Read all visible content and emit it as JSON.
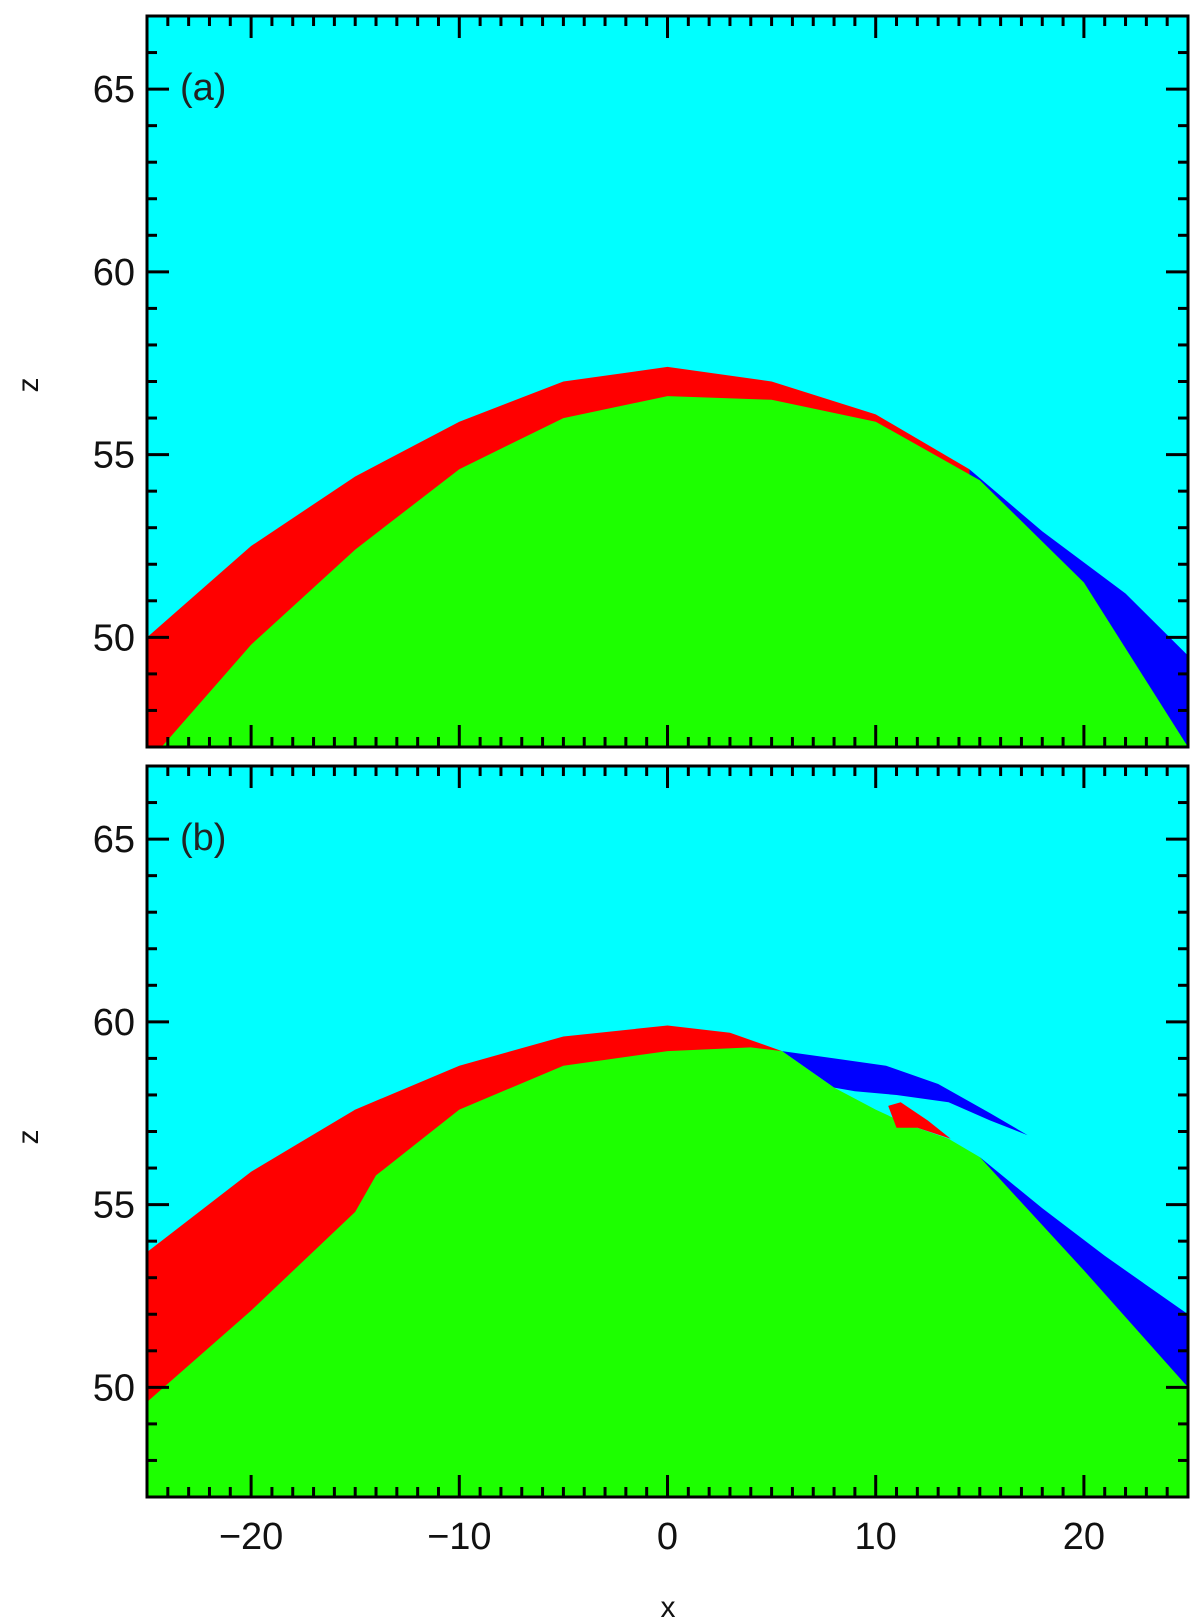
{
  "chart_data": [
    {
      "type": "heatmap",
      "panel_label": "(a)",
      "xlabel": "",
      "ylabel": "z",
      "xlim": [
        -25,
        25
      ],
      "ylim": [
        47,
        67
      ],
      "xticks": [],
      "yticks": [
        50,
        55,
        60,
        65
      ],
      "grid": false,
      "legend": "none",
      "colors": {
        "background": "#00ffff",
        "green": "#1dff00",
        "red": "#ff0000",
        "blue": "#0000ff"
      },
      "regions": {
        "green_top": [
          [
            -24.3,
            47
          ],
          [
            -20,
            49.8
          ],
          [
            -15,
            52.4
          ],
          [
            -10,
            54.6
          ],
          [
            -5,
            56
          ],
          [
            0,
            56.6
          ],
          [
            5,
            56.5
          ],
          [
            10,
            55.9
          ],
          [
            15,
            54.3
          ],
          [
            20,
            51.5
          ],
          [
            25,
            47
          ]
        ],
        "red_top": [
          [
            -25,
            50
          ],
          [
            -20,
            52.5
          ],
          [
            -15,
            54.4
          ],
          [
            -10,
            55.9
          ],
          [
            -5,
            57
          ],
          [
            0,
            57.4
          ],
          [
            5,
            57
          ],
          [
            10,
            56.1
          ],
          [
            14.5,
            54.6
          ]
        ],
        "blue_top": [
          [
            14.5,
            54.6
          ],
          [
            18,
            52.9
          ],
          [
            22,
            51.2
          ],
          [
            25,
            49.5
          ]
        ]
      }
    },
    {
      "type": "heatmap",
      "panel_label": "(b)",
      "xlabel": "x",
      "ylabel": "z",
      "xlim": [
        -25,
        25
      ],
      "ylim": [
        47,
        67
      ],
      "xticks": [
        -20,
        -10,
        0,
        10,
        20
      ],
      "yticks": [
        50,
        55,
        60,
        65
      ],
      "grid": false,
      "legend": "none",
      "colors": {
        "background": "#00ffff",
        "green": "#1dff00",
        "red": "#ff0000",
        "blue": "#0000ff"
      },
      "regions": {
        "green_top": [
          [
            -25,
            49.6
          ],
          [
            -20,
            52.1
          ],
          [
            -15,
            54.8
          ],
          [
            -14,
            55.8
          ],
          [
            -10,
            57.6
          ],
          [
            -5,
            58.8
          ],
          [
            0,
            59.2
          ],
          [
            4,
            59.3
          ],
          [
            5.5,
            59.2
          ],
          [
            7,
            58.6
          ],
          [
            8,
            58.2
          ],
          [
            10,
            57.6
          ],
          [
            11.5,
            57.2
          ],
          [
            13.5,
            56.8
          ],
          [
            15,
            56.3
          ],
          [
            20,
            53.2
          ],
          [
            25,
            50
          ]
        ],
        "red_top": [
          [
            -25,
            53.7
          ],
          [
            -20,
            55.9
          ],
          [
            -15,
            57.6
          ],
          [
            -10,
            58.8
          ],
          [
            -5,
            59.6
          ],
          [
            0,
            59.9
          ],
          [
            3,
            59.7
          ],
          [
            5.5,
            59.2
          ]
        ],
        "blue_upper": [
          [
            5.5,
            59.2
          ],
          [
            8,
            59
          ],
          [
            10.5,
            58.8
          ],
          [
            13,
            58.3
          ],
          [
            15.5,
            57.5
          ],
          [
            17.3,
            56.9
          ]
        ],
        "blue_lower": [
          [
            15,
            56.3
          ],
          [
            18,
            54.9
          ],
          [
            21,
            53.6
          ],
          [
            25,
            52
          ]
        ],
        "red_small": [
          [
            10.6,
            57.7
          ],
          [
            11,
            57.1
          ],
          [
            12,
            57.1
          ],
          [
            13.6,
            56.8
          ],
          [
            12.5,
            57.3
          ],
          [
            11.2,
            57.8
          ]
        ]
      }
    }
  ]
}
